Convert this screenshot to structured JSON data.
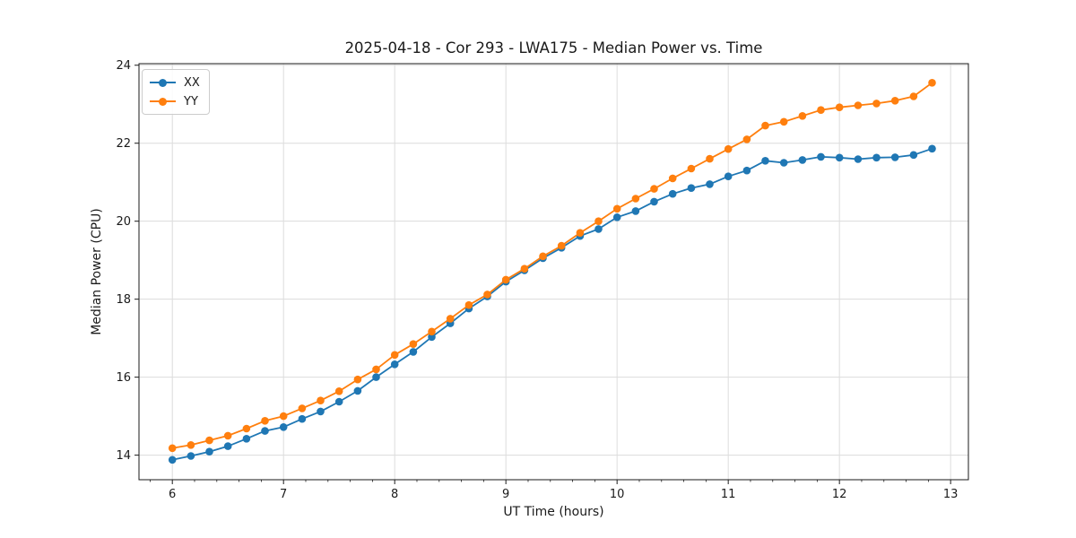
{
  "chart_data": {
    "type": "line",
    "title": "2025-04-18 - Cor 293 - LWA175 - Median Power vs. Time",
    "xlabel": "UT Time (hours)",
    "ylabel": "Median Power (CPU)",
    "xlim": [
      5.7,
      13.16
    ],
    "ylim": [
      13.37,
      24.04
    ],
    "x_major_ticks": [
      6,
      7,
      8,
      9,
      10,
      11,
      12,
      13
    ],
    "x_minor_tick_step": 0.2,
    "y_major_ticks": [
      14,
      16,
      18,
      20,
      22,
      24
    ],
    "grid": true,
    "grid_color": "#dcdcdc",
    "spine_color": "#1a1a1a",
    "legend_position": "upper-left",
    "x": [
      6.0,
      6.167,
      6.333,
      6.5,
      6.667,
      6.833,
      7.0,
      7.167,
      7.333,
      7.5,
      7.667,
      7.833,
      8.0,
      8.167,
      8.333,
      8.5,
      8.667,
      8.833,
      9.0,
      9.167,
      9.333,
      9.5,
      9.667,
      9.833,
      10.0,
      10.167,
      10.333,
      10.5,
      10.667,
      10.833,
      11.0,
      11.167,
      11.333,
      11.5,
      11.667,
      11.833,
      12.0,
      12.167,
      12.333,
      12.5,
      12.667,
      12.833
    ],
    "series": [
      {
        "name": "XX",
        "color": "#1f77b4",
        "values": [
          13.88,
          13.98,
          14.09,
          14.23,
          14.42,
          14.62,
          14.72,
          14.93,
          15.12,
          15.37,
          15.65,
          16.0,
          16.33,
          16.65,
          17.03,
          17.38,
          17.76,
          18.07,
          18.45,
          18.74,
          19.05,
          19.32,
          19.62,
          19.8,
          20.1,
          20.26,
          20.5,
          20.7,
          20.85,
          20.95,
          21.15,
          21.3,
          21.55,
          21.5,
          21.57,
          21.65,
          21.63,
          21.59,
          21.63,
          21.64,
          21.7,
          21.86
        ]
      },
      {
        "name": "YY",
        "color": "#ff7f0e",
        "values": [
          14.18,
          14.26,
          14.38,
          14.5,
          14.68,
          14.88,
          15.0,
          15.2,
          15.4,
          15.64,
          15.94,
          16.2,
          16.57,
          16.85,
          17.17,
          17.5,
          17.85,
          18.12,
          18.5,
          18.78,
          19.1,
          19.37,
          19.7,
          20.0,
          20.32,
          20.58,
          20.83,
          21.1,
          21.35,
          21.6,
          21.85,
          22.1,
          22.45,
          22.55,
          22.7,
          22.85,
          22.92,
          22.97,
          23.02,
          23.09,
          23.2,
          23.55
        ]
      }
    ]
  }
}
